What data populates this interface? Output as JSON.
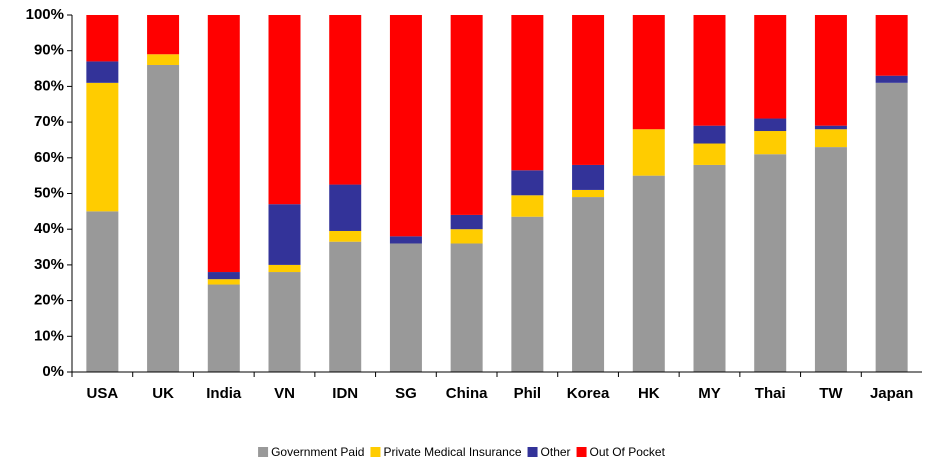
{
  "chart_data": {
    "type": "stacked_bar",
    "categories": [
      "USA",
      "UK",
      "India",
      "VN",
      "IDN",
      "SG",
      "China",
      "Phil",
      "Korea",
      "HK",
      "MY",
      "Thai",
      "TW",
      "Japan"
    ],
    "series": [
      {
        "name": "Government Paid",
        "color": "#999999",
        "values": [
          45,
          86,
          24.5,
          28,
          36.5,
          36,
          36,
          43.5,
          49,
          55,
          58,
          61,
          63,
          81
        ]
      },
      {
        "name": "Private Medical Insurance",
        "color": "#ffcc00",
        "values": [
          36,
          3,
          1.5,
          2,
          3,
          0,
          4,
          6,
          2,
          13,
          6,
          6.5,
          5,
          0
        ]
      },
      {
        "name": "Other",
        "color": "#333399",
        "values": [
          6,
          0,
          2,
          17,
          13,
          2,
          4,
          7,
          7,
          0,
          5,
          3.5,
          1,
          2
        ]
      },
      {
        "name": "Out Of Pocket",
        "color": "#ff0000",
        "values": [
          13,
          11,
          72,
          53,
          47.5,
          62,
          56,
          43.5,
          42,
          32,
          31,
          29,
          31,
          17
        ]
      }
    ],
    "ylim": [
      0,
      100
    ],
    "yticks": [
      {
        "value": 0,
        "label": "0%"
      },
      {
        "value": 10,
        "label": "10%"
      },
      {
        "value": 20,
        "label": "20%"
      },
      {
        "value": 30,
        "label": "30%"
      },
      {
        "value": 40,
        "label": "40%"
      },
      {
        "value": 50,
        "label": "50%"
      },
      {
        "value": 60,
        "label": "60%"
      },
      {
        "value": 70,
        "label": "70%"
      },
      {
        "value": 80,
        "label": "80%"
      },
      {
        "value": 90,
        "label": "90%"
      },
      {
        "value": 100,
        "label": "100%"
      }
    ],
    "legend": "bottom"
  }
}
